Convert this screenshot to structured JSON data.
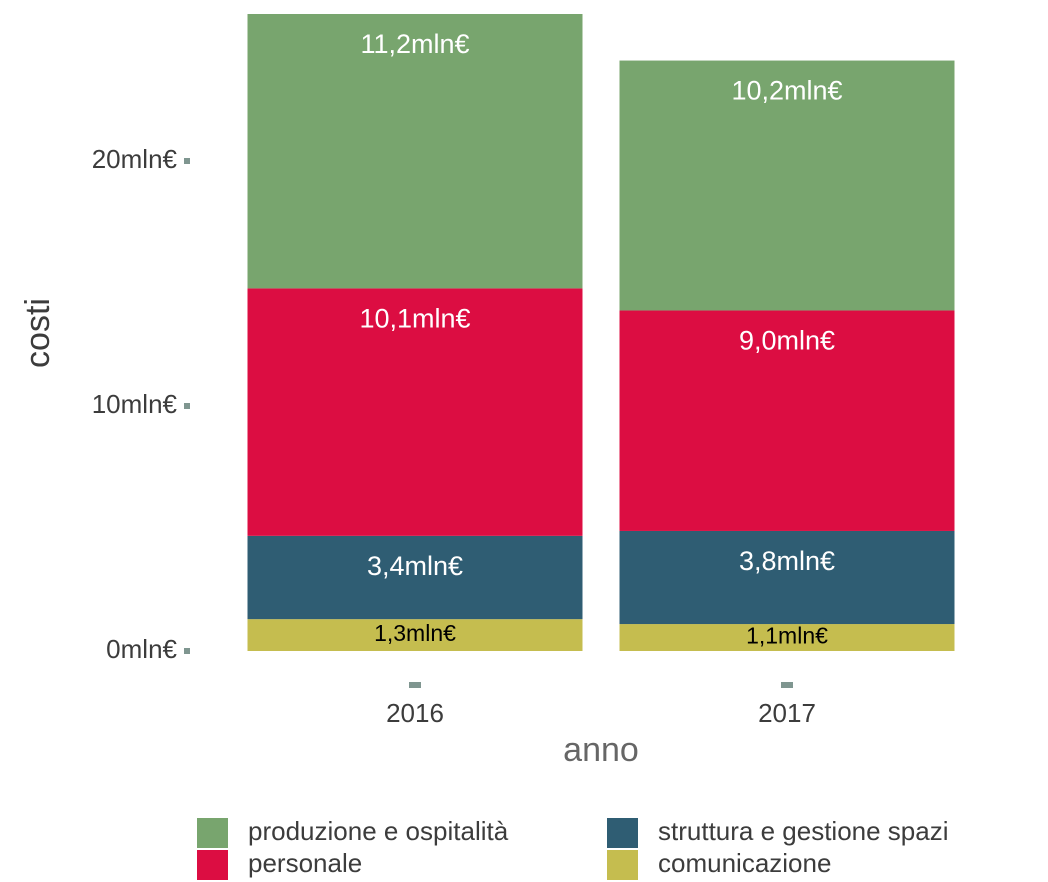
{
  "chart_data": {
    "type": "stacked_bar",
    "x_label": "anno",
    "y_label": "costi",
    "categories": [
      "2016",
      "2017"
    ],
    "series": [
      {
        "name": "produzione e ospitalità",
        "color": "#78a56e",
        "values": [
          11.2,
          10.2
        ],
        "value_labels": [
          "11,2mln€",
          "10,2mln€"
        ]
      },
      {
        "name": "personale",
        "color": "#dc0d42",
        "values": [
          10.1,
          9.0
        ],
        "value_labels": [
          "10,1mln€",
          "9,0mln€"
        ]
      },
      {
        "name": "struttura e gestione spazi",
        "color": "#2f5d73",
        "values": [
          3.4,
          3.8
        ],
        "value_labels": [
          "3,4mln€",
          "3,8mln€"
        ]
      },
      {
        "name": "comunicazione",
        "color": "#c5bd4f",
        "values": [
          1.3,
          1.1
        ],
        "value_labels": [
          "1,3mln€",
          "1,1mln€"
        ]
      }
    ],
    "ylim": [
      0,
      26
    ],
    "yticks": [
      {
        "value": 0,
        "label": "0mln€"
      },
      {
        "value": 10,
        "label": "10mln€"
      },
      {
        "value": 20,
        "label": "20mln€"
      }
    ],
    "grid": false,
    "legend": "bottom"
  }
}
